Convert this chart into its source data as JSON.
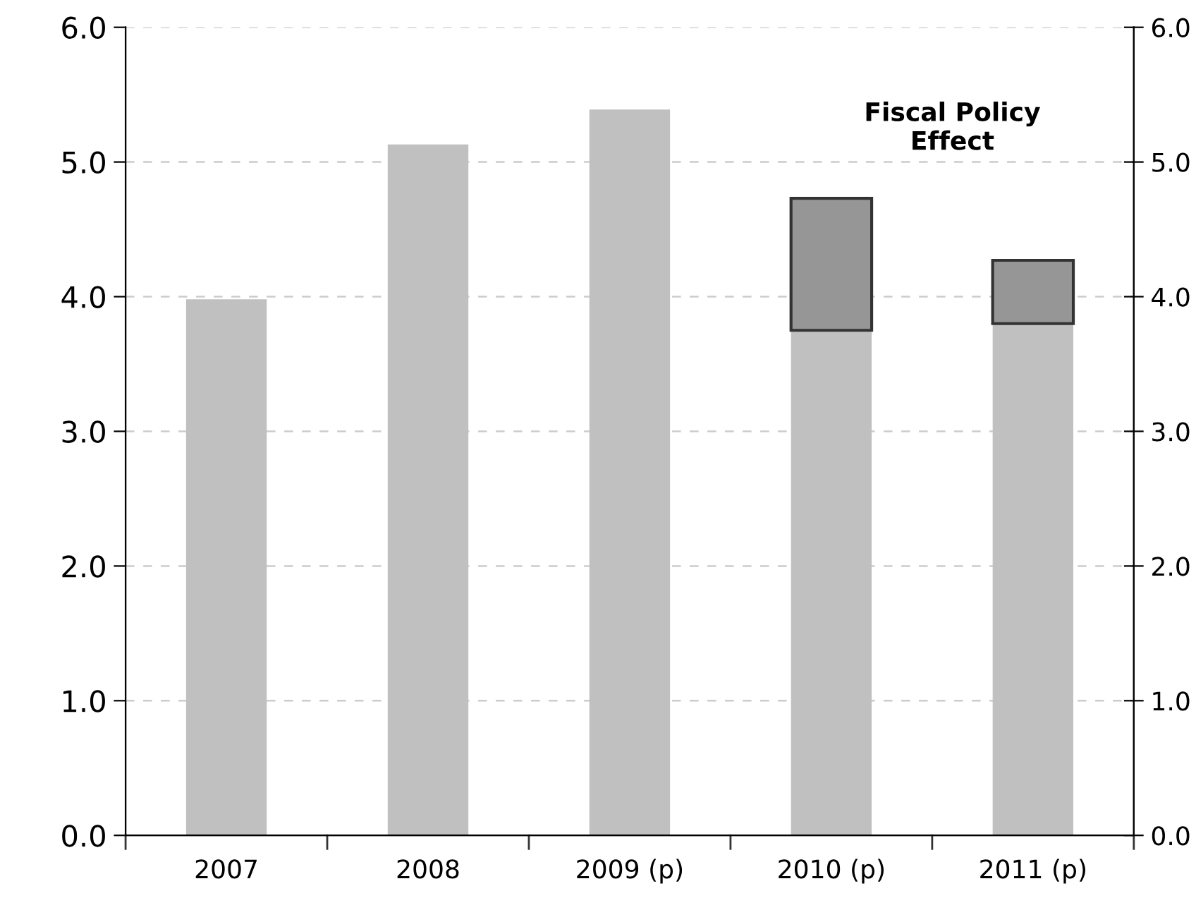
{
  "chart_data": {
    "type": "bar",
    "stacked": true,
    "categories": [
      "2007",
      "2008",
      "2009 (p)",
      "2010 (p)",
      "2011 (p)"
    ],
    "series": [
      {
        "color": "#c0c0c0",
        "values": [
          3.98,
          5.13,
          5.39,
          3.75,
          3.8
        ]
      },
      {
        "color": "#969696",
        "values": [
          null,
          null,
          null,
          0.98,
          0.47
        ]
      }
    ],
    "ylim": [
      0,
      6
    ],
    "yticks": [
      {
        "value": 0,
        "label": "0.0"
      },
      {
        "value": 1,
        "label": "1.0"
      },
      {
        "value": 2,
        "label": "2.0"
      },
      {
        "value": 3,
        "label": "3.0"
      },
      {
        "value": 4,
        "label": "4.0"
      },
      {
        "value": 5,
        "label": "5.0"
      },
      {
        "value": 6,
        "label": "6.0"
      }
    ],
    "y2lim": [
      0,
      6
    ],
    "y2ticks": [
      {
        "value": 0,
        "label": "0.0"
      },
      {
        "value": 1,
        "label": "1.0"
      },
      {
        "value": 2,
        "label": "2.0"
      },
      {
        "value": 3,
        "label": "3.0"
      },
      {
        "value": 4,
        "label": "4.0"
      },
      {
        "value": 5,
        "label": "5.0"
      },
      {
        "value": 6,
        "label": "6.0"
      }
    ],
    "grid": "y",
    "annotations": [
      "Fiscal Policy\nEffect"
    ]
  }
}
